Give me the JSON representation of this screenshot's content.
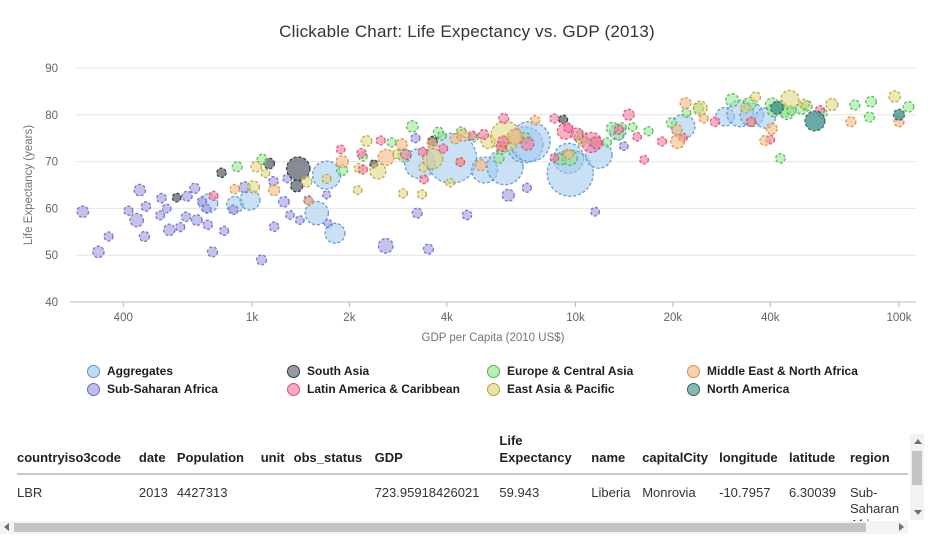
{
  "chart": {
    "title": "Clickable Chart: Life Expectancy vs. GDP (2013)"
  },
  "chart_data": {
    "type": "scatter",
    "title": "Clickable Chart: Life Expectancy vs. GDP (2013)",
    "xlabel": "GDP per Capita (2010 US$)",
    "ylabel": "Life Expectancy (years)",
    "x_scale": "log",
    "xlim": [
      280,
      115000
    ],
    "ylim": [
      36,
      93
    ],
    "grid": "horizontal",
    "legend_position": "bottom",
    "x_ticks": [
      {
        "value": 400,
        "label": "400"
      },
      {
        "value": 1000,
        "label": "1k"
      },
      {
        "value": 2000,
        "label": "2k"
      },
      {
        "value": 4000,
        "label": "4k"
      },
      {
        "value": 10000,
        "label": "10k"
      },
      {
        "value": 20000,
        "label": "20k"
      },
      {
        "value": 40000,
        "label": "40k"
      },
      {
        "value": 100000,
        "label": "100k"
      }
    ],
    "y_ticks": [
      40,
      50,
      60,
      70,
      80,
      90
    ],
    "point_format": [
      "gdp_per_capita_usd",
      "life_expectancy_years",
      "bubble_radius_px"
    ],
    "series": [
      {
        "name": "Aggregates",
        "fill": "#9ec8ec",
        "stroke": "#5b93c9",
        "opacity": 0.55,
        "points": [
          [
            733,
            61.1,
            9.3
          ],
          [
            886,
            60.8,
            8.3
          ],
          [
            986,
            61.8,
            10
          ],
          [
            1585,
            59.0,
            11.7
          ],
          [
            1700,
            67.1,
            14
          ],
          [
            1805,
            54.7,
            10
          ],
          [
            3300,
            69.6,
            15
          ],
          [
            4140,
            70.7,
            25
          ],
          [
            5240,
            68.2,
            13
          ],
          [
            6060,
            68.9,
            18
          ],
          [
            6980,
            73.6,
            18
          ],
          [
            7240,
            74.3,
            20
          ],
          [
            9520,
            70.7,
            15
          ],
          [
            9630,
            67.5,
            23
          ],
          [
            11800,
            71.4,
            13.3
          ],
          [
            13500,
            76.3,
            8
          ],
          [
            21500,
            77.5,
            12
          ],
          [
            29000,
            79.6,
            9.3
          ],
          [
            32300,
            80.3,
            13.3
          ],
          [
            35100,
            80.0,
            11.7
          ],
          [
            38600,
            79.3,
            10
          ]
        ]
      },
      {
        "name": "Sub-Saharan Africa",
        "fill": "#9c9bdf",
        "stroke": "#6b6ac9",
        "opacity": 0.6,
        "points": [
          [
            300,
            59.3,
            5.7
          ],
          [
            335,
            50.7,
            5.7
          ],
          [
            360,
            54.0,
            4.5
          ],
          [
            415,
            59.5,
            4.5
          ],
          [
            440,
            57.5,
            6.7
          ],
          [
            450,
            63.9,
            5.7
          ],
          [
            465,
            54.0,
            5
          ],
          [
            470,
            60.4,
            4.7
          ],
          [
            520,
            58.5,
            4.5
          ],
          [
            525,
            62.2,
            4.7
          ],
          [
            545,
            60.0,
            4.3
          ],
          [
            555,
            55.4,
            5.7
          ],
          [
            600,
            56.0,
            4.5
          ],
          [
            625,
            58.2,
            4.7
          ],
          [
            630,
            62.6,
            5
          ],
          [
            665,
            64.3,
            5
          ],
          [
            675,
            57.5,
            5.3
          ],
          [
            700,
            61.5,
            4.5
          ],
          [
            724,
            59.9,
            4.3
          ],
          [
            730,
            56.5,
            4.7
          ],
          [
            755,
            50.7,
            5
          ],
          [
            820,
            55.2,
            4.5
          ],
          [
            875,
            59.7,
            4.7
          ],
          [
            950,
            64.5,
            5.5
          ],
          [
            1070,
            49.0,
            5
          ],
          [
            1165,
            65.8,
            4.7
          ],
          [
            1170,
            56.1,
            4.7
          ],
          [
            1255,
            61.4,
            5.3
          ],
          [
            1285,
            66.4,
            4.3
          ],
          [
            1310,
            58.6,
            4.3
          ],
          [
            1405,
            57.5,
            4.3
          ],
          [
            1490,
            61.8,
            4.3
          ],
          [
            1700,
            62.9,
            4
          ],
          [
            1720,
            56.8,
            4
          ],
          [
            2590,
            52.0,
            7.3
          ],
          [
            3200,
            75.0,
            4.5
          ],
          [
            3240,
            59.0,
            5
          ],
          [
            3510,
            51.3,
            5
          ],
          [
            4620,
            58.6,
            4.7
          ],
          [
            6200,
            62.8,
            6
          ],
          [
            7070,
            64.4,
            4.5
          ],
          [
            11500,
            59.3,
            4.3
          ],
          [
            14100,
            73.3,
            4.3
          ]
        ]
      },
      {
        "name": "South Asia",
        "fill": "#5f6670",
        "stroke": "#30363d",
        "opacity": 0.75,
        "points": [
          [
            585,
            62.3,
            4.3
          ],
          [
            805,
            67.6,
            4.7
          ],
          [
            1130,
            69.6,
            5.3
          ],
          [
            1375,
            64.8,
            6
          ],
          [
            1390,
            68.5,
            11.7
          ],
          [
            2380,
            69.5,
            4
          ],
          [
            3620,
            74.4,
            4.7
          ],
          [
            9170,
            79.0,
            4.3
          ]
        ]
      },
      {
        "name": "Europe & Central Asia",
        "fill": "#8fe58f",
        "stroke": "#52b152",
        "opacity": 0.55,
        "points": [
          [
            900,
            68.9,
            5
          ],
          [
            1075,
            70.5,
            5
          ],
          [
            1900,
            68.2,
            5.5
          ],
          [
            2200,
            71.1,
            4.5
          ],
          [
            2700,
            74.1,
            4.5
          ],
          [
            2960,
            71.3,
            6.5
          ],
          [
            3130,
            77.5,
            5.7
          ],
          [
            3770,
            76.3,
            5
          ],
          [
            3860,
            75.5,
            4.3
          ],
          [
            4430,
            76.4,
            4.7
          ],
          [
            4850,
            75.2,
            4.5
          ],
          [
            5800,
            70.7,
            5
          ],
          [
            5900,
            72.5,
            4.5
          ],
          [
            6090,
            74.5,
            4.5
          ],
          [
            7000,
            75.1,
            5
          ],
          [
            9000,
            70.5,
            5.5
          ],
          [
            9600,
            70.8,
            7.5
          ],
          [
            10400,
            75.2,
            6.5
          ],
          [
            11300,
            74.2,
            4.5
          ],
          [
            12500,
            74.1,
            4.5
          ],
          [
            13000,
            77.1,
            6
          ],
          [
            13600,
            75.7,
            5
          ],
          [
            13900,
            77.3,
            4.5
          ],
          [
            15000,
            77.4,
            4.3
          ],
          [
            16800,
            76.5,
            4.5
          ],
          [
            19800,
            78.3,
            5
          ],
          [
            22000,
            80.4,
            4.5
          ],
          [
            24000,
            81.4,
            5
          ],
          [
            30500,
            83.1,
            6.5
          ],
          [
            34500,
            82.3,
            6.5
          ],
          [
            40500,
            82.2,
            6.5
          ],
          [
            41000,
            81.0,
            6.5
          ],
          [
            43000,
            82.1,
            4.3
          ],
          [
            44500,
            80.6,
            5
          ],
          [
            45100,
            80.5,
            7
          ],
          [
            46500,
            80.9,
            4.7
          ],
          [
            50000,
            81.3,
            5.5
          ],
          [
            52000,
            81.9,
            5
          ],
          [
            58000,
            80.3,
            4.7
          ],
          [
            73000,
            82.1,
            5
          ],
          [
            81000,
            79.5,
            5
          ],
          [
            82000,
            82.8,
            5.3
          ],
          [
            107000,
            81.7,
            5.3
          ],
          [
            43000,
            70.7,
            4.7
          ]
        ]
      },
      {
        "name": "East Asia & Pacific",
        "fill": "#e0d47a",
        "stroke": "#b3a339",
        "opacity": 0.55,
        "points": [
          [
            1010,
            64.6,
            6
          ],
          [
            1030,
            68.9,
            5.3
          ],
          [
            1100,
            67.5,
            4.3
          ],
          [
            1475,
            65.7,
            5.3
          ],
          [
            1700,
            66.3,
            4.5
          ],
          [
            2120,
            63.9,
            4.3
          ],
          [
            2140,
            68.6,
            4.7
          ],
          [
            2260,
            74.4,
            5.3
          ],
          [
            2450,
            68.0,
            8
          ],
          [
            2800,
            71.6,
            4.3
          ],
          [
            2930,
            63.2,
            4.5
          ],
          [
            3350,
            63.0,
            4.5
          ],
          [
            3390,
            68.8,
            4.7
          ],
          [
            3620,
            70.6,
            10
          ],
          [
            4100,
            65.5,
            4.3
          ],
          [
            4400,
            69.9,
            4.3
          ],
          [
            5370,
            74.3,
            7
          ],
          [
            6080,
            75.4,
            15
          ],
          [
            10460,
            74.5,
            5.5
          ],
          [
            24300,
            81.4,
            7
          ],
          [
            33500,
            81.4,
            4.7
          ],
          [
            35000,
            78.5,
            4.3
          ],
          [
            36000,
            83.8,
            5
          ],
          [
            46000,
            83.3,
            9
          ],
          [
            51000,
            82.3,
            4.7
          ],
          [
            62000,
            82.2,
            6
          ],
          [
            97000,
            83.9,
            5.7
          ]
        ]
      },
      {
        "name": "Latin America & Caribbean",
        "fill": "#f27b9d",
        "stroke": "#d94f78",
        "opacity": 0.6,
        "points": [
          [
            760,
            62.7,
            4.5
          ],
          [
            1880,
            72.6,
            4.3
          ],
          [
            2180,
            71.8,
            4.7
          ],
          [
            2200,
            68.3,
            4.5
          ],
          [
            2500,
            74.5,
            4.5
          ],
          [
            2990,
            71.5,
            5
          ],
          [
            3370,
            72.1,
            4.5
          ],
          [
            3400,
            66.2,
            4.3
          ],
          [
            3900,
            72.8,
            4.5
          ],
          [
            4400,
            69.9,
            4.3
          ],
          [
            4800,
            75.6,
            4.3
          ],
          [
            5200,
            75.8,
            5
          ],
          [
            5900,
            73.2,
            5
          ],
          [
            5970,
            74.3,
            5.5
          ],
          [
            6000,
            79.2,
            5
          ],
          [
            7100,
            73.8,
            6.5
          ],
          [
            8600,
            70.8,
            4.3
          ],
          [
            8600,
            79.2,
            4.5
          ],
          [
            9300,
            76.5,
            8
          ],
          [
            9500,
            77.2,
            4.5
          ],
          [
            10100,
            75.9,
            6
          ],
          [
            11200,
            74.1,
            10
          ],
          [
            11600,
            74.0,
            6
          ],
          [
            13600,
            76.8,
            4.5
          ],
          [
            14600,
            80.0,
            5.5
          ],
          [
            15500,
            75.3,
            4.3
          ],
          [
            16300,
            70.4,
            4.3
          ],
          [
            18500,
            74.3,
            4.5
          ],
          [
            21500,
            75.1,
            4.3
          ],
          [
            27000,
            78.5,
            4.7
          ],
          [
            34800,
            78.5,
            4.5
          ],
          [
            40000,
            74.7,
            4.3
          ],
          [
            57000,
            81.0,
            4.5
          ]
        ]
      },
      {
        "name": "Middle East & North Africa",
        "fill": "#f3b981",
        "stroke": "#db8b46",
        "opacity": 0.6,
        "points": [
          [
            885,
            64.1,
            4.7
          ],
          [
            1170,
            63.9,
            5.5
          ],
          [
            1500,
            61.5,
            4.3
          ],
          [
            1900,
            70.0,
            6
          ],
          [
            2600,
            70.9,
            8
          ],
          [
            2900,
            73.7,
            5.5
          ],
          [
            3600,
            73.8,
            5
          ],
          [
            4250,
            74.9,
            5
          ],
          [
            4480,
            75.6,
            6
          ],
          [
            5100,
            69.2,
            5.5
          ],
          [
            6500,
            75.3,
            7.5
          ],
          [
            7500,
            78.8,
            4.7
          ],
          [
            9500,
            71.6,
            5
          ],
          [
            20600,
            76.8,
            5
          ],
          [
            20700,
            74.3,
            7
          ],
          [
            21900,
            82.5,
            5.5
          ],
          [
            24900,
            79.2,
            4.5
          ],
          [
            38500,
            74.5,
            5
          ],
          [
            40400,
            77.0,
            5.5
          ],
          [
            71000,
            78.5,
            5
          ],
          [
            100000,
            78.5,
            5
          ]
        ]
      },
      {
        "name": "North America",
        "fill": "#47958e",
        "stroke": "#2b6963",
        "opacity": 0.8,
        "points": [
          [
            42000,
            81.5,
            6.3
          ],
          [
            55000,
            78.7,
            10
          ],
          [
            100000,
            80.0,
            5.5
          ]
        ]
      }
    ]
  },
  "legend": {
    "items": [
      {
        "label": "Aggregates",
        "series": "Aggregates"
      },
      {
        "label": "South Asia",
        "series": "South Asia"
      },
      {
        "label": "Europe & Central Asia",
        "series": "Europe & Central Asia"
      },
      {
        "label": "Middle East & North Africa",
        "series": "Middle East & North Africa"
      },
      {
        "label": "Sub-Saharan Africa",
        "series": "Sub-Saharan Africa"
      },
      {
        "label": "Latin America & Caribbean",
        "series": "Latin America & Caribbean"
      },
      {
        "label": "East Asia & Pacific",
        "series": "East Asia & Pacific"
      },
      {
        "label": "North America",
        "series": "North America"
      }
    ]
  },
  "table": {
    "columns": [
      "countryiso3code",
      "date",
      "Population",
      "unit",
      "obs_status",
      "GDP",
      "Life Expectancy",
      "name",
      "capitalCity",
      "longitude",
      "latitude",
      "region"
    ],
    "rows": [
      [
        "LBR",
        "2013",
        "4427313",
        "",
        "",
        "723.95918426021",
        "59.943",
        "Liberia",
        "Monrovia",
        "-10.7957",
        "6.30039",
        "Sub-Saharan Africa"
      ]
    ]
  }
}
